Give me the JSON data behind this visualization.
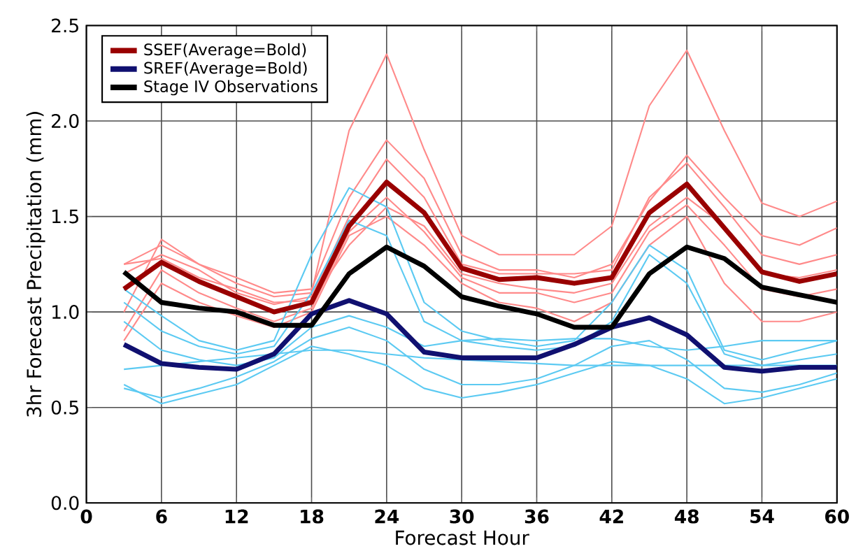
{
  "chart_data": {
    "type": "line",
    "xlabel": "Forecast Hour",
    "ylabel": "3hr Forecast Precipitation (mm)",
    "x": [
      3,
      6,
      9,
      12,
      15,
      18,
      21,
      24,
      27,
      30,
      33,
      36,
      39,
      42,
      45,
      48,
      51,
      54,
      57,
      60
    ],
    "xlim": [
      0,
      60
    ],
    "xticks": [
      0,
      6,
      12,
      18,
      24,
      30,
      36,
      42,
      48,
      54,
      60
    ],
    "ylim": [
      0,
      2.5
    ],
    "yticks": [
      {
        "value": 0,
        "label": "0.0"
      },
      {
        "value": 0.5,
        "label": "0.5"
      },
      {
        "value": 1,
        "label": "1.0"
      },
      {
        "value": 1.5,
        "label": "1.5"
      },
      {
        "value": 2,
        "label": "2.0"
      },
      {
        "value": 2.5,
        "label": "2.5"
      }
    ],
    "grid": true,
    "legend": "top left",
    "marker": "none",
    "line_style": "solid",
    "series": [
      {
        "color": "#ff8a8a",
        "values": [
          1.25,
          1.35,
          1.25,
          1.15,
          1.08,
          1.1,
          1.95,
          2.35,
          1.85,
          1.4,
          1.3,
          1.3,
          1.3,
          1.45,
          2.08,
          2.37,
          1.95,
          1.57,
          1.5,
          1.58
        ]
      },
      {
        "color": "#ff8a8a",
        "values": [
          1.0,
          1.38,
          1.25,
          1.18,
          1.1,
          1.12,
          1.6,
          1.9,
          1.7,
          1.3,
          1.22,
          1.22,
          1.18,
          1.25,
          1.58,
          1.82,
          1.6,
          1.4,
          1.35,
          1.44
        ]
      },
      {
        "color": "#ff8a8a",
        "values": [
          0.9,
          1.22,
          1.1,
          1.02,
          0.95,
          1.02,
          1.42,
          1.6,
          1.42,
          1.18,
          1.1,
          1.1,
          1.05,
          1.1,
          1.42,
          1.56,
          1.35,
          1.12,
          1.08,
          1.12
        ]
      },
      {
        "color": "#ff8a8a",
        "values": [
          1.2,
          1.3,
          1.22,
          1.1,
          1.04,
          1.08,
          1.5,
          1.8,
          1.6,
          1.25,
          1.2,
          1.2,
          1.2,
          1.22,
          1.6,
          1.78,
          1.55,
          1.3,
          1.25,
          1.3
        ]
      },
      {
        "color": "#ff8a8a",
        "values": [
          0.85,
          1.15,
          1.05,
          0.98,
          0.92,
          1.0,
          1.4,
          1.5,
          1.35,
          1.15,
          1.05,
          1.02,
          0.95,
          1.05,
          1.35,
          1.5,
          1.15,
          0.95,
          0.95,
          1.0
        ]
      },
      {
        "color": "#ff8a8a",
        "values": [
          1.25,
          1.28,
          1.18,
          1.12,
          1.05,
          1.06,
          1.35,
          1.55,
          1.45,
          1.2,
          1.15,
          1.12,
          1.1,
          1.15,
          1.45,
          1.6,
          1.45,
          1.2,
          1.18,
          1.22
        ]
      },
      {
        "color": "#5ccaf2",
        "values": [
          1.12,
          0.98,
          0.85,
          0.8,
          0.85,
          1.3,
          1.65,
          1.55,
          1.05,
          0.9,
          0.85,
          0.82,
          0.85,
          1.05,
          1.35,
          1.22,
          0.8,
          0.75,
          0.8,
          0.85
        ]
      },
      {
        "color": "#5ccaf2",
        "values": [
          1.05,
          0.9,
          0.82,
          0.78,
          0.82,
          1.1,
          1.48,
          1.4,
          0.95,
          0.85,
          0.82,
          0.8,
          0.82,
          0.95,
          1.3,
          1.15,
          0.78,
          0.72,
          0.75,
          0.78
        ]
      },
      {
        "color": "#5ccaf2",
        "values": [
          0.62,
          0.52,
          0.57,
          0.62,
          0.72,
          0.82,
          0.78,
          0.72,
          0.6,
          0.55,
          0.58,
          0.62,
          0.68,
          0.74,
          0.72,
          0.65,
          0.52,
          0.55,
          0.6,
          0.65
        ]
      },
      {
        "color": "#5ccaf2",
        "values": [
          0.7,
          0.72,
          0.74,
          0.76,
          0.78,
          0.8,
          0.8,
          0.78,
          0.76,
          0.75,
          0.74,
          0.73,
          0.72,
          0.72,
          0.72,
          0.72,
          0.72,
          0.72,
          0.72,
          0.72
        ]
      },
      {
        "color": "#5ccaf2",
        "values": [
          0.6,
          0.55,
          0.6,
          0.66,
          0.74,
          0.86,
          0.92,
          0.85,
          0.7,
          0.62,
          0.62,
          0.65,
          0.72,
          0.82,
          0.85,
          0.75,
          0.6,
          0.58,
          0.62,
          0.68
        ]
      },
      {
        "color": "#5ccaf2",
        "values": [
          0.95,
          0.8,
          0.75,
          0.72,
          0.76,
          0.92,
          0.98,
          0.92,
          0.82,
          0.85,
          0.86,
          0.85,
          0.86,
          0.86,
          0.82,
          0.8,
          0.82,
          0.85,
          0.85,
          0.85
        ]
      },
      {
        "name": "SSEF(Average=Bold)",
        "color": "#990000",
        "values": [
          1.12,
          1.26,
          1.16,
          1.08,
          1.0,
          1.05,
          1.45,
          1.68,
          1.52,
          1.23,
          1.17,
          1.18,
          1.15,
          1.18,
          1.52,
          1.67,
          1.44,
          1.21,
          1.16,
          1.2
        ]
      },
      {
        "name": "SREF(Average=Bold)",
        "color": "#101070",
        "values": [
          0.83,
          0.73,
          0.71,
          0.7,
          0.78,
          0.99,
          1.06,
          0.99,
          0.79,
          0.76,
          0.76,
          0.76,
          0.83,
          0.92,
          0.97,
          0.88,
          0.71,
          0.69,
          0.71,
          0.71
        ]
      },
      {
        "name": "Stage IV Observations",
        "color": "#000000",
        "values": [
          1.21,
          1.05,
          1.02,
          1.0,
          0.93,
          0.93,
          1.2,
          1.34,
          1.24,
          1.08,
          1.03,
          0.99,
          0.92,
          0.92,
          1.2,
          1.34,
          1.28,
          1.13,
          1.09,
          1.05
        ]
      }
    ]
  }
}
